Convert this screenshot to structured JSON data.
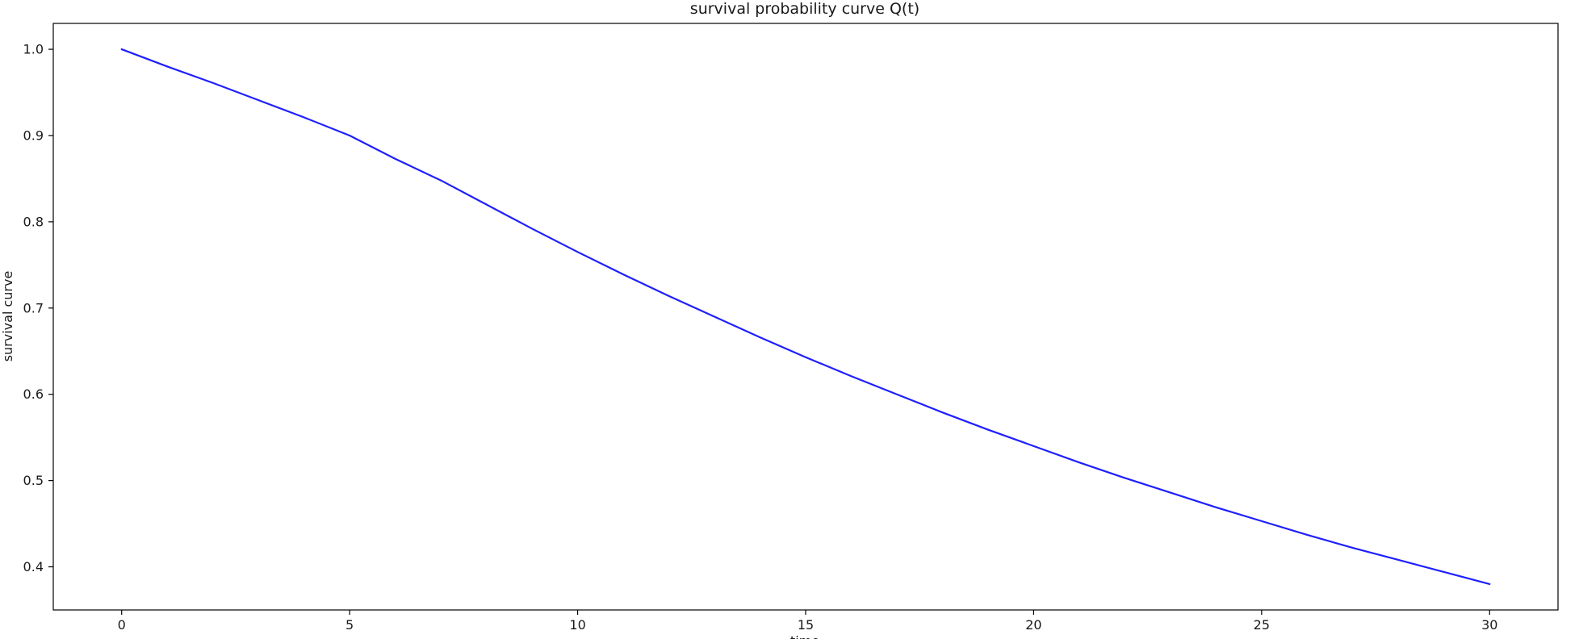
{
  "chart_data": {
    "type": "line",
    "title": "survival probability curve Q(t)",
    "xlabel": "time",
    "ylabel": "survival curve",
    "xlim": [
      -1.5,
      31.5
    ],
    "ylim": [
      0.35,
      1.03
    ],
    "x_ticks": [
      0,
      5,
      10,
      15,
      20,
      25,
      30
    ],
    "y_ticks": [
      0.4,
      0.5,
      0.6,
      0.7,
      0.8,
      0.9,
      1.0
    ],
    "x_tick_labels": [
      "0",
      "5",
      "10",
      "15",
      "20",
      "25",
      "30"
    ],
    "y_tick_labels": [
      "0.4",
      "0.5",
      "0.6",
      "0.7",
      "0.8",
      "0.9",
      "1.0"
    ],
    "grid": false,
    "series": [
      {
        "color": "#1f1fff",
        "x": [
          0,
          1,
          2,
          3,
          4,
          5,
          6,
          7,
          8,
          9,
          10,
          11,
          12,
          13,
          14,
          15,
          16,
          17,
          18,
          19,
          20,
          21,
          22,
          23,
          24,
          25,
          26,
          27,
          28,
          29,
          30
        ],
        "y": [
          1.0,
          0.98,
          0.961,
          0.941,
          0.921,
          0.9,
          0.873,
          0.848,
          0.82,
          0.792,
          0.765,
          0.739,
          0.714,
          0.69,
          0.666,
          0.643,
          0.621,
          0.6,
          0.579,
          0.559,
          0.54,
          0.521,
          0.503,
          0.486,
          0.469,
          0.453,
          0.437,
          0.422,
          0.408,
          0.394,
          0.38
        ]
      }
    ]
  }
}
